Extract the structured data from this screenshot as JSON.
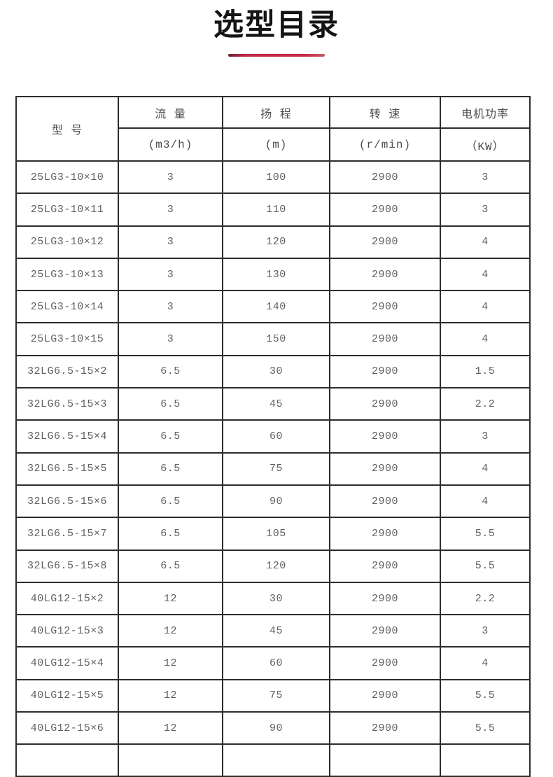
{
  "title": "选型目录",
  "accent_color": "#c12a48",
  "table": {
    "header": {
      "model": "型 号",
      "columns": [
        {
          "label": "流  量",
          "unit": "(m3/h)"
        },
        {
          "label": "扬  程",
          "unit": "(m)"
        },
        {
          "label": "转  速",
          "unit": "(r/min)"
        },
        {
          "label": "电机功率",
          "unit": "（KW）"
        }
      ]
    },
    "rows": [
      [
        "25LG3-10×10",
        "3",
        "100",
        "2900",
        "3"
      ],
      [
        "25LG3-10×11",
        "3",
        "110",
        "2900",
        "3"
      ],
      [
        "25LG3-10×12",
        "3",
        "120",
        "2900",
        "4"
      ],
      [
        "25LG3-10×13",
        "3",
        "130",
        "2900",
        "4"
      ],
      [
        "25LG3-10×14",
        "3",
        "140",
        "2900",
        "4"
      ],
      [
        "25LG3-10×15",
        "3",
        "150",
        "2900",
        "4"
      ],
      [
        "32LG6.5-15×2",
        "6.5",
        "30",
        "2900",
        "1.5"
      ],
      [
        "32LG6.5-15×3",
        "6.5",
        "45",
        "2900",
        "2.2"
      ],
      [
        "32LG6.5-15×4",
        "6.5",
        "60",
        "2900",
        "3"
      ],
      [
        "32LG6.5-15×5",
        "6.5",
        "75",
        "2900",
        "4"
      ],
      [
        "32LG6.5-15×6",
        "6.5",
        "90",
        "2900",
        "4"
      ],
      [
        "32LG6.5-15×7",
        "6.5",
        "105",
        "2900",
        "5.5"
      ],
      [
        "32LG6.5-15×8",
        "6.5",
        "120",
        "2900",
        "5.5"
      ],
      [
        "40LG12-15×2",
        "12",
        "30",
        "2900",
        "2.2"
      ],
      [
        "40LG12-15×3",
        "12",
        "45",
        "2900",
        "3"
      ],
      [
        "40LG12-15×4",
        "12",
        "60",
        "2900",
        "4"
      ],
      [
        "40LG12-15×5",
        "12",
        "75",
        "2900",
        "5.5"
      ],
      [
        "40LG12-15×6",
        "12",
        "90",
        "2900",
        "5.5"
      ]
    ],
    "partial_row": [
      "",
      "",
      "",
      "",
      ""
    ]
  },
  "chart_data": {
    "type": "table",
    "title": "选型目录",
    "columns": [
      "型号",
      "流量 (m3/h)",
      "扬程 (m)",
      "转速 (r/min)",
      "电机功率 (KW)"
    ],
    "rows": [
      [
        "25LG3-10×10",
        3,
        100,
        2900,
        3
      ],
      [
        "25LG3-10×11",
        3,
        110,
        2900,
        3
      ],
      [
        "25LG3-10×12",
        3,
        120,
        2900,
        4
      ],
      [
        "25LG3-10×13",
        3,
        130,
        2900,
        4
      ],
      [
        "25LG3-10×14",
        3,
        140,
        2900,
        4
      ],
      [
        "25LG3-10×15",
        3,
        150,
        2900,
        4
      ],
      [
        "32LG6.5-15×2",
        6.5,
        30,
        2900,
        1.5
      ],
      [
        "32LG6.5-15×3",
        6.5,
        45,
        2900,
        2.2
      ],
      [
        "32LG6.5-15×4",
        6.5,
        60,
        2900,
        3
      ],
      [
        "32LG6.5-15×5",
        6.5,
        75,
        2900,
        4
      ],
      [
        "32LG6.5-15×6",
        6.5,
        90,
        2900,
        4
      ],
      [
        "32LG6.5-15×7",
        6.5,
        105,
        2900,
        5.5
      ],
      [
        "32LG6.5-15×8",
        6.5,
        120,
        2900,
        5.5
      ],
      [
        "40LG12-15×2",
        12,
        30,
        2900,
        2.2
      ],
      [
        "40LG12-15×3",
        12,
        45,
        2900,
        3
      ],
      [
        "40LG12-15×4",
        12,
        60,
        2900,
        4
      ],
      [
        "40LG12-15×5",
        12,
        75,
        2900,
        5.5
      ],
      [
        "40LG12-15×6",
        12,
        90,
        2900,
        5.5
      ]
    ]
  }
}
